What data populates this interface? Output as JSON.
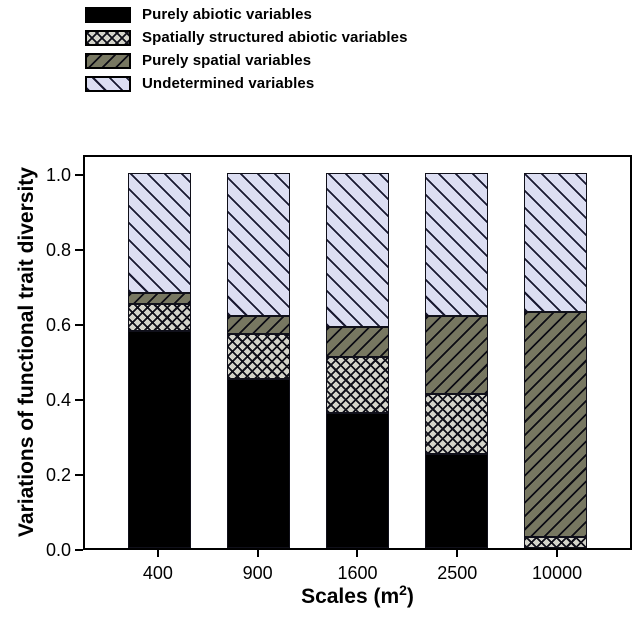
{
  "chart_data": {
    "type": "bar",
    "stacked": true,
    "orientation": "vertical",
    "grid": false,
    "legend_position": "top-left",
    "categories": [
      "400",
      "900",
      "1600",
      "2500",
      "10000"
    ],
    "series": [
      {
        "name": "Purely abiotic variables",
        "pattern": "solid",
        "color": "#000000",
        "values": [
          0.58,
          0.45,
          0.36,
          0.25,
          0.0
        ]
      },
      {
        "name": "Spatially structured abiotic variables",
        "pattern": "crosshatch",
        "color": "#d4d4ca",
        "values": [
          0.07,
          0.12,
          0.15,
          0.16,
          0.03
        ]
      },
      {
        "name": "Purely spatial variables",
        "pattern": "diagonal-forward",
        "color": "#777761",
        "values": [
          0.03,
          0.05,
          0.08,
          0.21,
          0.6
        ]
      },
      {
        "name": "Undetermined variables",
        "pattern": "diagonal-backward",
        "color": "#dcdef2",
        "values": [
          0.32,
          0.38,
          0.41,
          0.38,
          0.37
        ]
      }
    ],
    "xlabel_prefix": "Scales (m",
    "xlabel_exponent": "2",
    "xlabel_suffix": ")",
    "ylabel": "Variations of functional trait diversity",
    "yticks": [
      "0.0",
      "0.2",
      "0.4",
      "0.6",
      "0.8",
      "1.0"
    ],
    "ylim": [
      0.0,
      1.0
    ]
  }
}
